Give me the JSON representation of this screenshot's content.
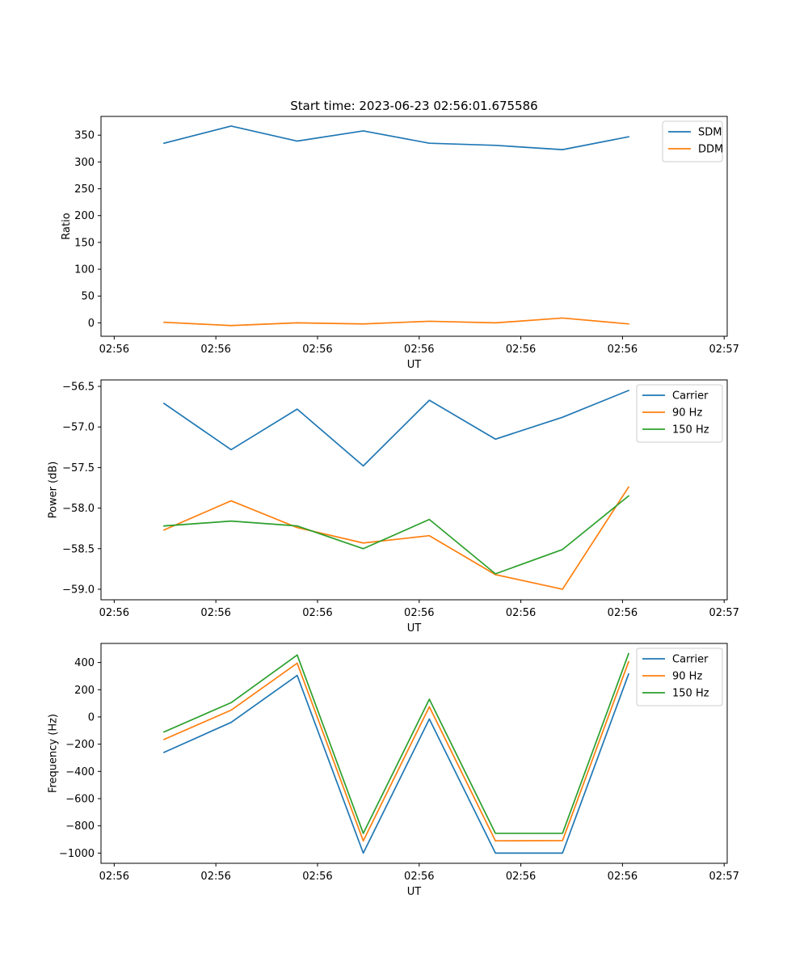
{
  "figure": {
    "title": "Start time: 2023-06-23 02:56:01.675586"
  },
  "chart_data": [
    {
      "type": "line",
      "xlabel": "UT",
      "ylabel": "Ratio",
      "x_tick_labels": [
        "02:56",
        "02:56",
        "02:56",
        "02:56",
        "02:56",
        "02:56",
        "02:57"
      ],
      "x_tick_positions": [
        0,
        1,
        2,
        3,
        4,
        5,
        6
      ],
      "x": [
        0.49,
        1.15,
        1.8,
        2.45,
        3.1,
        3.75,
        4.41,
        5.06
      ],
      "xlim": [
        -0.13,
        6.03
      ],
      "ylim": [
        -25,
        385
      ],
      "y_ticks": [
        0,
        50,
        100,
        150,
        200,
        250,
        300,
        350
      ],
      "legend_position": "upper-right",
      "series": [
        {
          "name": "SDM",
          "color": "#1f77b4",
          "values": [
            335,
            367,
            339,
            358,
            335,
            331,
            323,
            347
          ]
        },
        {
          "name": "DDM",
          "color": "#ff7f0e",
          "values": [
            1,
            -5,
            0,
            -2,
            3,
            0,
            9,
            -2
          ]
        }
      ]
    },
    {
      "type": "line",
      "xlabel": "UT",
      "ylabel": "Power (dB)",
      "x_tick_labels": [
        "02:56",
        "02:56",
        "02:56",
        "02:56",
        "02:56",
        "02:56",
        "02:57"
      ],
      "x_tick_positions": [
        0,
        1,
        2,
        3,
        4,
        5,
        6
      ],
      "x": [
        0.49,
        1.15,
        1.8,
        2.45,
        3.1,
        3.75,
        4.41,
        5.06
      ],
      "xlim": [
        -0.13,
        6.03
      ],
      "ylim": [
        -59.13,
        -56.42
      ],
      "y_ticks": [
        -59.0,
        -58.5,
        -58.0,
        -57.5,
        -57.0,
        -56.5
      ],
      "y_tick_labels": [
        "−59.0",
        "−58.5",
        "−58.0",
        "−57.5",
        "−57.0",
        "−56.5"
      ],
      "legend_position": "upper-right",
      "series": [
        {
          "name": "Carrier",
          "color": "#1f77b4",
          "values": [
            -56.71,
            -57.28,
            -56.78,
            -57.48,
            -56.67,
            -57.15,
            -56.88,
            -56.55
          ]
        },
        {
          "name": "90 Hz",
          "color": "#ff7f0e",
          "values": [
            -58.27,
            -57.91,
            -58.24,
            -58.43,
            -58.34,
            -58.82,
            -59.0,
            -57.74
          ]
        },
        {
          "name": "150 Hz",
          "color": "#2ca02c",
          "values": [
            -58.22,
            -58.16,
            -58.22,
            -58.5,
            -58.14,
            -58.81,
            -58.51,
            -57.85
          ]
        }
      ]
    },
    {
      "type": "line",
      "xlabel": "UT",
      "ylabel": "Frequency (Hz)",
      "x_tick_labels": [
        "02:56",
        "02:56",
        "02:56",
        "02:56",
        "02:56",
        "02:56",
        "02:57"
      ],
      "x_tick_positions": [
        0,
        1,
        2,
        3,
        4,
        5,
        6
      ],
      "x": [
        0.49,
        1.15,
        1.8,
        2.45,
        3.1,
        3.75,
        4.41,
        5.06
      ],
      "xlim": [
        -0.13,
        6.03
      ],
      "ylim": [
        -1075,
        540
      ],
      "y_ticks": [
        -1000,
        -800,
        -600,
        -400,
        -200,
        0,
        200,
        400
      ],
      "y_tick_labels": [
        "−1000",
        "−800",
        "−600",
        "−400",
        "−200",
        "0",
        "200",
        "400"
      ],
      "legend_position": "upper-right",
      "series": [
        {
          "name": "Carrier",
          "color": "#1f77b4",
          "values": [
            -260,
            -40,
            305,
            -1000,
            -15,
            -1000,
            -1000,
            315
          ]
        },
        {
          "name": "90 Hz",
          "color": "#ff7f0e",
          "values": [
            -165,
            50,
            395,
            -910,
            75,
            -910,
            -908,
            405
          ]
        },
        {
          "name": "150 Hz",
          "color": "#2ca02c",
          "values": [
            -110,
            105,
            455,
            -855,
            130,
            -855,
            -855,
            465
          ]
        }
      ]
    }
  ]
}
